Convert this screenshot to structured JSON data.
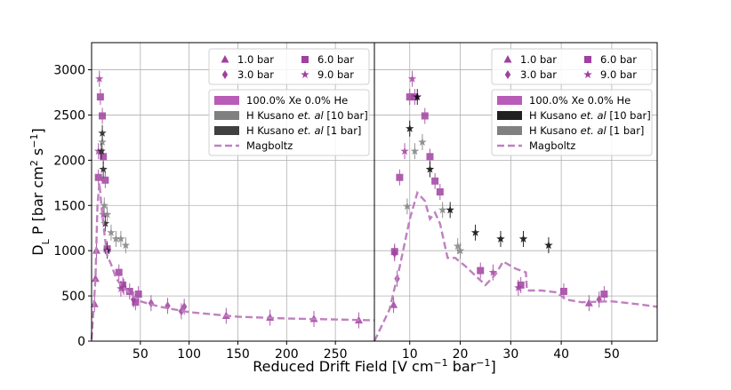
{
  "chart_data": [
    {
      "type": "scatter",
      "panel": "left",
      "xlim": [
        0,
        290
      ],
      "ylim": [
        0,
        3300
      ],
      "xticks": [
        50,
        100,
        150,
        200,
        250
      ],
      "xtick_labels": [
        "50",
        "100",
        "150",
        "200",
        "250"
      ],
      "yticks": [
        0,
        500,
        1000,
        1500,
        2000,
        2500,
        3000
      ],
      "ytick_labels": [
        "0",
        "500",
        "1000",
        "1500",
        "2000",
        "2500",
        "3000"
      ],
      "ylabel": "D_L P [bar cm^2 s^-1]",
      "grid": true,
      "pressure_legend": {
        "placement": "top-right",
        "items": [
          {
            "marker": "triangle",
            "label": "1.0 bar"
          },
          {
            "marker": "square",
            "label": "6.0 bar"
          },
          {
            "marker": "diamond",
            "label": "3.0 bar"
          },
          {
            "marker": "star",
            "label": "9.0 bar"
          }
        ]
      },
      "series_legend": {
        "items": [
          {
            "swatch": "#b85cb8",
            "label_main": "100.0% Xe 0.0% He",
            "label_italic": "",
            "label_tail": ""
          },
          {
            "swatch": "#808080",
            "label_main": "H Kusano ",
            "label_italic": "et. al",
            "label_tail": " [10 bar]"
          },
          {
            "swatch": "#404040",
            "label_main": "H Kusano ",
            "label_italic": "et. al",
            "label_tail": " [1 bar]"
          },
          {
            "swatch": "dash",
            "label_main": "Magboltz",
            "label_italic": "",
            "label_tail": ""
          }
        ]
      },
      "series": [
        {
          "name": "100.0% Xe 0.0% He (measured)",
          "color": "#a040a0",
          "points": [
            {
              "x": 3,
              "y": 410,
              "m": "triangle"
            },
            {
              "x": 4,
              "y": 690,
              "m": "triangle"
            },
            {
              "x": 5,
              "y": 1000,
              "m": "triangle"
            },
            {
              "x": 7,
              "y": 1810,
              "m": "square"
            },
            {
              "x": 9,
              "y": 2700,
              "m": "square"
            },
            {
              "x": 11,
              "y": 2490,
              "m": "square"
            },
            {
              "x": 12,
              "y": 2040,
              "m": "square"
            },
            {
              "x": 14,
              "y": 1780,
              "m": "square"
            },
            {
              "x": 16,
              "y": 1020,
              "m": "square"
            },
            {
              "x": 28,
              "y": 760,
              "m": "square"
            },
            {
              "x": 32,
              "y": 620,
              "m": "square"
            },
            {
              "x": 39,
              "y": 550,
              "m": "square"
            },
            {
              "x": 45,
              "y": 430,
              "m": "square"
            },
            {
              "x": 48,
              "y": 520,
              "m": "square"
            },
            {
              "x": 8,
              "y": 2900,
              "m": "star"
            },
            {
              "x": 7,
              "y": 2100,
              "m": "star"
            },
            {
              "x": 12,
              "y": 1400,
              "m": "star"
            },
            {
              "x": 30,
              "y": 580,
              "m": "star"
            },
            {
              "x": 33,
              "y": 600,
              "m": "diamond"
            },
            {
              "x": 43,
              "y": 460,
              "m": "diamond"
            },
            {
              "x": 61,
              "y": 420,
              "m": "diamond"
            },
            {
              "x": 78,
              "y": 390,
              "m": "diamond"
            },
            {
              "x": 92,
              "y": 330,
              "m": "diamond"
            },
            {
              "x": 95,
              "y": 380,
              "m": "diamond"
            },
            {
              "x": 138,
              "y": 280,
              "m": "triangle"
            },
            {
              "x": 183,
              "y": 260,
              "m": "triangle"
            },
            {
              "x": 228,
              "y": 245,
              "m": "triangle"
            },
            {
              "x": 274,
              "y": 230,
              "m": "triangle"
            }
          ]
        },
        {
          "name": "H Kusano et. al [10 bar]",
          "color": "#808080",
          "points": [
            {
              "x": 11,
              "y": 2200
            },
            {
              "x": 13,
              "y": 1500
            },
            {
              "x": 16,
              "y": 1400
            },
            {
              "x": 20,
              "y": 1200
            },
            {
              "x": 25,
              "y": 1130
            },
            {
              "x": 30,
              "y": 1130
            },
            {
              "x": 35,
              "y": 1060
            }
          ]
        },
        {
          "name": "H Kusano et. al [1 bar]",
          "color": "#1a1a1a",
          "points": [
            {
              "x": 10,
              "y": 2100
            },
            {
              "x": 11,
              "y": 2300
            },
            {
              "x": 12,
              "y": 1900
            },
            {
              "x": 14,
              "y": 1300
            },
            {
              "x": 16,
              "y": 1000
            }
          ]
        },
        {
          "name": "Magboltz",
          "color": "#c080c0",
          "style": "dashed",
          "points": [
            {
              "x": 0,
              "y": 20
            },
            {
              "x": 4,
              "y": 700
            },
            {
              "x": 6,
              "y": 1500
            },
            {
              "x": 8,
              "y": 1750
            },
            {
              "x": 10,
              "y": 1500
            },
            {
              "x": 13,
              "y": 1200
            },
            {
              "x": 16,
              "y": 950
            },
            {
              "x": 20,
              "y": 850
            },
            {
              "x": 25,
              "y": 700
            },
            {
              "x": 30,
              "y": 620
            },
            {
              "x": 40,
              "y": 520
            },
            {
              "x": 50,
              "y": 440
            },
            {
              "x": 70,
              "y": 380
            },
            {
              "x": 100,
              "y": 320
            },
            {
              "x": 150,
              "y": 270
            },
            {
              "x": 200,
              "y": 250
            },
            {
              "x": 250,
              "y": 240
            },
            {
              "x": 290,
              "y": 230
            }
          ]
        }
      ]
    },
    {
      "type": "scatter",
      "panel": "right",
      "xlim": [
        3,
        59
      ],
      "ylim": [
        0,
        3300
      ],
      "xticks": [
        10,
        20,
        30,
        40,
        50
      ],
      "xtick_labels": [
        "10",
        "20",
        "30",
        "40",
        "50"
      ],
      "xlabel": "Reduced Drift Field [V cm^-1 bar^-1]",
      "grid": true,
      "pressure_legend": {
        "placement": "top-right",
        "items": [
          {
            "marker": "triangle",
            "label": "1.0 bar"
          },
          {
            "marker": "square",
            "label": "6.0 bar"
          },
          {
            "marker": "diamond",
            "label": "3.0 bar"
          },
          {
            "marker": "star",
            "label": "9.0 bar"
          }
        ]
      },
      "series_legend": {
        "items": [
          {
            "swatch": "#b85cb8",
            "label_main": "100.0% Xe 0.0% He",
            "label_italic": "",
            "label_tail": ""
          },
          {
            "swatch": "#202020",
            "label_main": "H Kusano ",
            "label_italic": "et. al",
            "label_tail": " [10 bar]"
          },
          {
            "swatch": "#808080",
            "label_main": "H Kusano ",
            "label_italic": "et. al",
            "label_tail": " [1 bar]"
          },
          {
            "swatch": "dash",
            "label_main": "Magboltz",
            "label_italic": "",
            "label_tail": ""
          }
        ]
      },
      "series": [
        {
          "name": "100.0% Xe 0.0% He (measured)",
          "color": "#a040a0",
          "points": [
            {
              "x": 7,
              "y": 990,
              "m": "square"
            },
            {
              "x": 8,
              "y": 1810,
              "m": "square"
            },
            {
              "x": 10,
              "y": 2700,
              "m": "square"
            },
            {
              "x": 11,
              "y": 2700,
              "m": "square"
            },
            {
              "x": 13,
              "y": 2490,
              "m": "square"
            },
            {
              "x": 14,
              "y": 2040,
              "m": "square"
            },
            {
              "x": 15,
              "y": 1770,
              "m": "square"
            },
            {
              "x": 16,
              "y": 1650,
              "m": "square"
            },
            {
              "x": 24,
              "y": 780,
              "m": "square"
            },
            {
              "x": 32,
              "y": 620,
              "m": "square"
            },
            {
              "x": 40.5,
              "y": 550,
              "m": "square"
            },
            {
              "x": 48.5,
              "y": 520,
              "m": "square"
            },
            {
              "x": 10.5,
              "y": 2900,
              "m": "star"
            },
            {
              "x": 9,
              "y": 2100,
              "m": "star"
            },
            {
              "x": 26.5,
              "y": 760,
              "m": "star"
            },
            {
              "x": 31.5,
              "y": 590,
              "m": "star"
            },
            {
              "x": 7,
              "y": 970,
              "m": "diamond"
            },
            {
              "x": 7.5,
              "y": 690,
              "m": "diamond"
            },
            {
              "x": 47.5,
              "y": 460,
              "m": "diamond"
            },
            {
              "x": 45.5,
              "y": 420,
              "m": "triangle"
            },
            {
              "x": 6.8,
              "y": 400,
              "m": "triangle"
            }
          ]
        },
        {
          "name": "H Kusano et. al [10 bar]",
          "color": "#000000",
          "points": [
            {
              "x": 10,
              "y": 2350
            },
            {
              "x": 11.5,
              "y": 2700
            },
            {
              "x": 14,
              "y": 1900
            },
            {
              "x": 18,
              "y": 1450
            },
            {
              "x": 23,
              "y": 1200
            },
            {
              "x": 28,
              "y": 1130
            },
            {
              "x": 32.5,
              "y": 1130
            },
            {
              "x": 37.5,
              "y": 1060
            }
          ]
        },
        {
          "name": "H Kusano et. al [1 bar]",
          "color": "#808080",
          "points": [
            {
              "x": 9.5,
              "y": 1490
            },
            {
              "x": 11,
              "y": 2100
            },
            {
              "x": 12.5,
              "y": 2200
            },
            {
              "x": 16.5,
              "y": 1450
            },
            {
              "x": 19.5,
              "y": 1050
            },
            {
              "x": 20,
              "y": 1000
            }
          ]
        },
        {
          "name": "Magboltz",
          "color": "#c080c0",
          "style": "dashed",
          "points": [
            {
              "x": 3,
              "y": 0
            },
            {
              "x": 6,
              "y": 350
            },
            {
              "x": 8,
              "y": 820
            },
            {
              "x": 10,
              "y": 1350
            },
            {
              "x": 11.5,
              "y": 1640
            },
            {
              "x": 13,
              "y": 1550
            },
            {
              "x": 14,
              "y": 1350
            },
            {
              "x": 15,
              "y": 1420
            },
            {
              "x": 16,
              "y": 1300
            },
            {
              "x": 17.5,
              "y": 920
            },
            {
              "x": 19,
              "y": 920
            },
            {
              "x": 21,
              "y": 830
            },
            {
              "x": 25,
              "y": 620
            },
            {
              "x": 27,
              "y": 740
            },
            {
              "x": 28.5,
              "y": 880
            },
            {
              "x": 31,
              "y": 800
            },
            {
              "x": 33,
              "y": 760
            },
            {
              "x": 33.2,
              "y": 560
            },
            {
              "x": 36,
              "y": 560
            },
            {
              "x": 39,
              "y": 540
            },
            {
              "x": 41,
              "y": 460
            },
            {
              "x": 44,
              "y": 430
            },
            {
              "x": 50,
              "y": 440
            },
            {
              "x": 55,
              "y": 410
            },
            {
              "x": 59,
              "y": 380
            }
          ]
        }
      ]
    }
  ]
}
